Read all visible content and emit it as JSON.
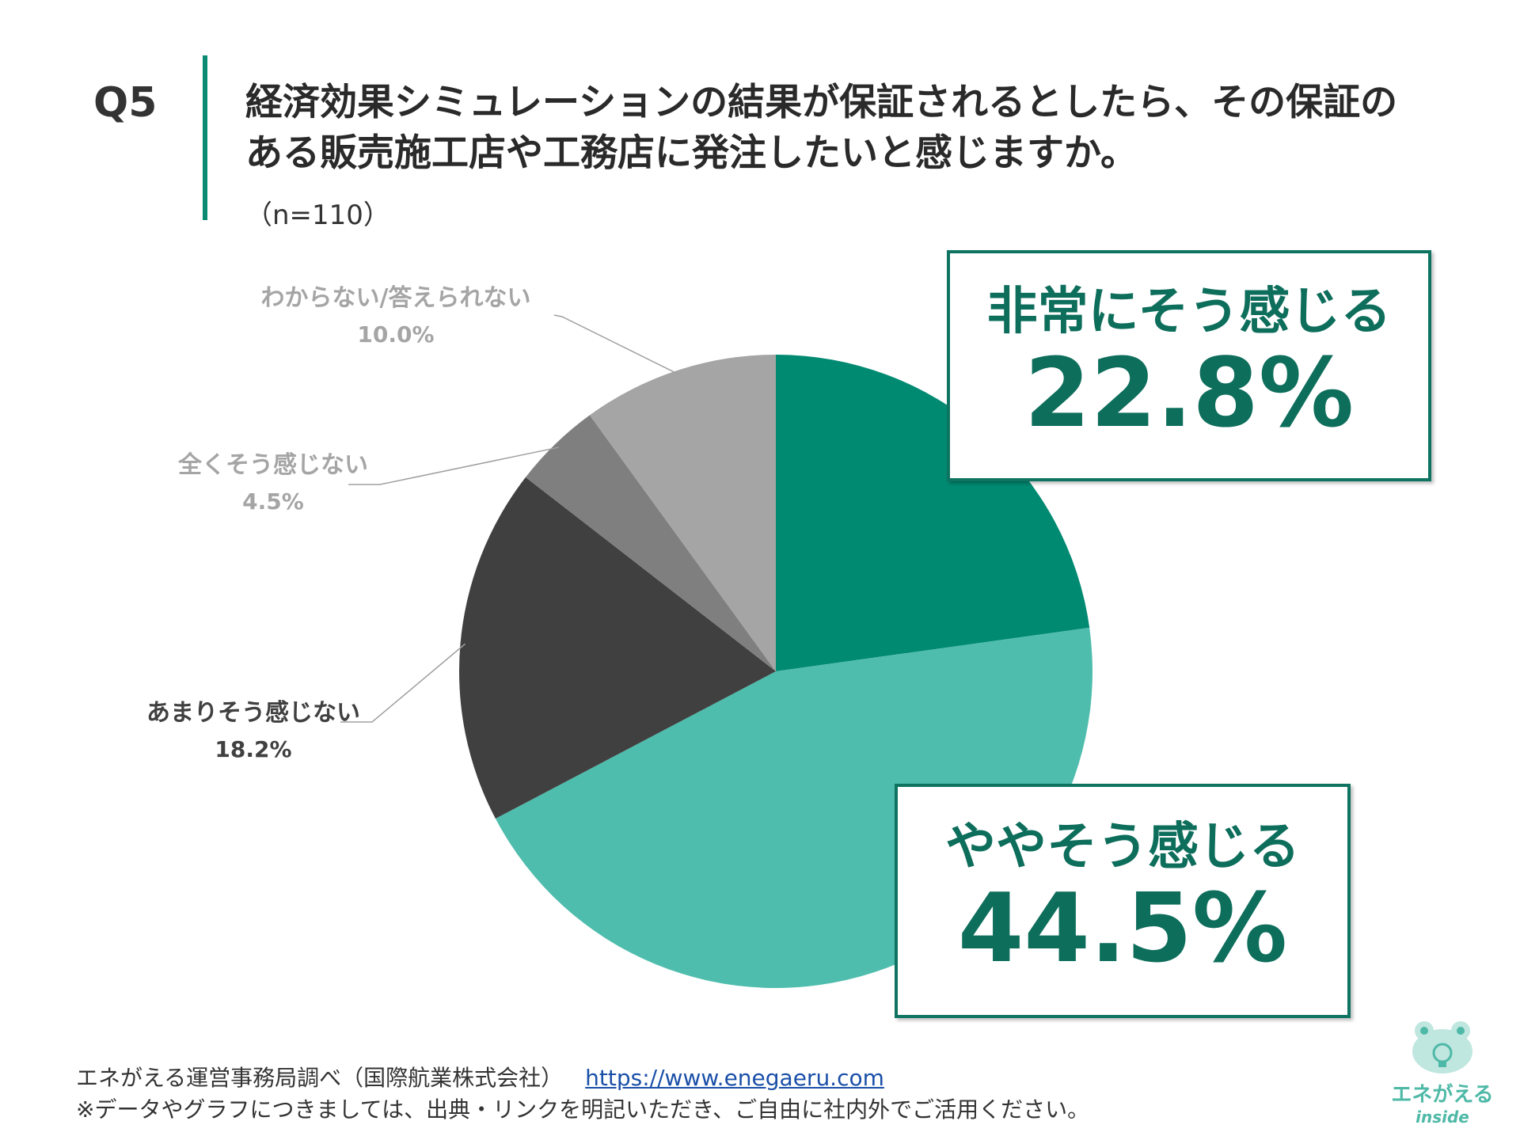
{
  "header": {
    "qnum": "Q5",
    "question_line1": "経済効果シミュレーションの結果が保証されるとしたら、その保証の",
    "question_line2": "ある販売施工店や工務店に発注したいと感じますか。",
    "sample": "（n=110）"
  },
  "chart_data": {
    "type": "pie",
    "title": "",
    "slices": [
      {
        "label": "非常にそう感じる",
        "value": 22.8,
        "value_label": "22.8%",
        "color": "#008a72"
      },
      {
        "label": "ややそう感じる",
        "value": 44.5,
        "value_label": "44.5%",
        "color": "#4fbdad"
      },
      {
        "label": "あまりそう感じない",
        "value": 18.2,
        "value_label": "18.2%",
        "color": "#404040"
      },
      {
        "label": "全くそう感じない",
        "value": 4.5,
        "value_label": "4.5%",
        "color": "#7f7f7f"
      },
      {
        "label": "わからない/答えられない",
        "value": 10.0,
        "value_label": "10.0%",
        "color": "#a5a5a5"
      }
    ],
    "start": "12 o'clock",
    "direction": "clockwise"
  },
  "colors": {
    "accent": "#0a8a73",
    "callout_text": "#0e6e5c",
    "label_dark": "#404040",
    "label_gray": "#a5a5a5"
  },
  "footer": {
    "source": "エネがえる運営事務局調べ（国際航業株式会社）",
    "url": "https://www.enegaeru.com",
    "note": "※データやグラフにつきましては、出典・リンクを明記いただき、ご自由に社内外でご活用ください。"
  },
  "logo": {
    "brand": "エネがえる",
    "sub": "inside",
    "icon": "frog-lightbulb-icon"
  }
}
